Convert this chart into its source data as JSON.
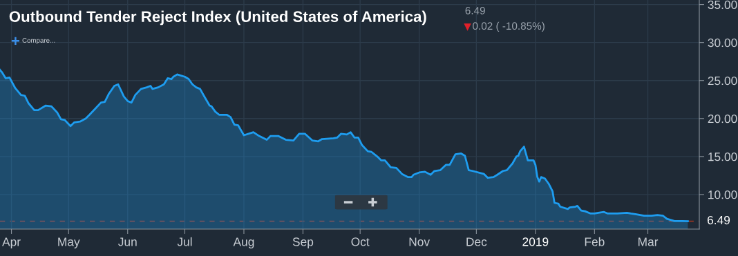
{
  "chart_data": {
    "type": "area",
    "title": "Outbound Tender Reject Index (United States of America)",
    "annotations": [
      "6.49",
      "0.02 ( -10.85%)",
      "Compare..."
    ],
    "x": [
      "2018-03-26",
      "2018-03-27",
      "2018-03-29",
      "2018-03-31",
      "2018-04-03",
      "2018-04-06",
      "2018-04-08",
      "2018-04-10",
      "2018-04-13",
      "2018-04-15",
      "2018-04-19",
      "2018-04-22",
      "2018-04-25",
      "2018-04-27",
      "2018-04-29",
      "2018-05-02",
      "2018-05-04",
      "2018-05-07",
      "2018-05-10",
      "2018-05-12",
      "2018-05-15",
      "2018-05-18",
      "2018-05-20",
      "2018-05-22",
      "2018-05-25",
      "2018-05-27",
      "2018-05-30",
      "2018-06-01",
      "2018-06-03",
      "2018-06-05",
      "2018-06-08",
      "2018-06-11",
      "2018-06-13",
      "2018-06-14",
      "2018-06-17",
      "2018-06-20",
      "2018-06-22",
      "2018-06-24",
      "2018-06-25",
      "2018-06-27",
      "2018-07-01",
      "2018-07-03",
      "2018-07-05",
      "2018-07-07",
      "2018-07-09",
      "2018-07-11",
      "2018-07-14",
      "2018-07-15",
      "2018-07-17",
      "2018-07-19",
      "2018-07-23",
      "2018-07-25",
      "2018-07-27",
      "2018-07-29",
      "2018-08-01",
      "2018-08-06",
      "2018-08-09",
      "2018-08-13",
      "2018-08-15",
      "2018-08-19",
      "2018-08-23",
      "2018-08-27",
      "2018-08-30",
      "2018-09-02",
      "2018-09-06",
      "2018-09-09",
      "2018-09-11",
      "2018-09-17",
      "2018-09-19",
      "2018-09-21",
      "2018-09-24",
      "2018-09-26",
      "2018-09-28",
      "2018-09-30",
      "2018-10-02",
      "2018-10-05",
      "2018-10-07",
      "2018-10-10",
      "2018-10-12",
      "2018-10-14",
      "2018-10-17",
      "2018-10-20",
      "2018-10-23",
      "2018-10-26",
      "2018-10-28",
      "2018-10-29",
      "2018-11-01",
      "2018-11-04",
      "2018-11-07",
      "2018-11-09",
      "2018-11-12",
      "2018-11-15",
      "2018-11-17",
      "2018-11-20",
      "2018-11-23",
      "2018-11-25",
      "2018-11-27",
      "2018-11-29",
      "2018-12-05",
      "2018-12-07",
      "2018-12-10",
      "2018-12-12",
      "2018-12-15",
      "2018-12-17",
      "2018-12-20",
      "2018-12-22",
      "2018-12-23",
      "2018-12-24",
      "2018-12-26",
      "2018-12-28",
      "2018-12-31",
      "2019-01-01",
      "2019-01-02",
      "2019-01-03",
      "2019-01-04",
      "2019-01-06",
      "2019-01-08",
      "2019-01-10",
      "2019-01-11",
      "2019-01-13",
      "2019-01-14",
      "2019-01-18",
      "2019-01-19",
      "2019-01-22",
      "2019-01-23",
      "2019-01-25",
      "2019-01-27",
      "2019-01-30",
      "2019-02-01",
      "2019-02-03",
      "2019-02-06",
      "2019-02-08",
      "2019-02-13",
      "2019-02-18",
      "2019-02-20",
      "2019-02-23",
      "2019-02-27",
      "2019-03-03",
      "2019-03-06",
      "2019-03-09",
      "2019-03-11",
      "2019-03-15",
      "2019-03-17",
      "2019-03-19",
      "2019-03-22"
    ],
    "series": [
      {
        "color": "#1e9df0",
        "values": [
          26.4,
          26.1,
          25.3,
          25.4,
          24.0,
          23.1,
          23.0,
          22.0,
          21.1,
          21.1,
          21.7,
          21.6,
          20.8,
          19.9,
          19.8,
          19.0,
          19.5,
          19.6,
          20.0,
          20.5,
          21.3,
          22.1,
          22.2,
          23.2,
          24.3,
          24.5,
          22.9,
          22.3,
          22.1,
          23.1,
          23.9,
          24.1,
          24.3,
          23.9,
          24.1,
          24.5,
          25.3,
          25.2,
          25.5,
          25.8,
          25.5,
          25.2,
          24.5,
          24.1,
          23.9,
          23.0,
          21.7,
          21.6,
          20.9,
          20.5,
          20.5,
          20.2,
          19.2,
          19.1,
          17.8,
          18.2,
          17.7,
          17.2,
          17.7,
          17.7,
          17.2,
          17.1,
          18.0,
          18.0,
          17.1,
          17.0,
          17.3,
          17.4,
          17.5,
          18.0,
          17.9,
          18.2,
          17.5,
          17.5,
          16.5,
          15.7,
          15.6,
          15.0,
          14.5,
          14.5,
          13.6,
          13.5,
          12.7,
          12.3,
          12.3,
          12.6,
          12.9,
          13.0,
          12.6,
          13.1,
          13.2,
          13.9,
          13.9,
          15.3,
          15.4,
          15.1,
          13.2,
          13.1,
          12.7,
          12.2,
          12.3,
          12.6,
          13.1,
          13.2,
          14.1,
          15.0,
          15.1,
          15.7,
          16.3,
          14.5,
          14.5,
          13.9,
          12.3,
          11.7,
          12.3,
          12.1,
          11.4,
          10.4,
          8.9,
          8.8,
          8.4,
          8.1,
          8.3,
          8.4,
          8.5,
          7.9,
          7.8,
          7.5,
          7.5,
          7.6,
          7.7,
          7.5,
          7.5,
          7.6,
          7.5,
          7.4,
          7.2,
          7.2,
          7.3,
          7.2,
          6.8,
          6.5,
          6.5,
          6.5,
          6.49
        ]
      }
    ],
    "xlim": [
      "2018-03-26",
      "2019-03-28"
    ],
    "xticks": [
      {
        "value": "2018-04-01",
        "label": "Apr"
      },
      {
        "value": "2018-05-01",
        "label": "May"
      },
      {
        "value": "2018-06-01",
        "label": "Jun"
      },
      {
        "value": "2018-07-01",
        "label": "Jul"
      },
      {
        "value": "2018-08-01",
        "label": "Aug"
      },
      {
        "value": "2018-09-01",
        "label": "Sep"
      },
      {
        "value": "2018-10-01",
        "label": "Oct"
      },
      {
        "value": "2018-11-01",
        "label": "Nov"
      },
      {
        "value": "2018-12-01",
        "label": "Dec"
      },
      {
        "value": "2019-01-01",
        "label": "2019"
      },
      {
        "value": "2019-02-01",
        "label": "Feb"
      },
      {
        "value": "2019-03-01",
        "label": "Mar"
      }
    ],
    "ylim": [
      5.45,
      35.6
    ],
    "yticks": [
      {
        "value": 10,
        "label": "10.00"
      },
      {
        "value": 15,
        "label": "15.00"
      },
      {
        "value": 20,
        "label": "20.00"
      },
      {
        "value": 25,
        "label": "25.00"
      },
      {
        "value": 30,
        "label": "30.00"
      },
      {
        "value": 35,
        "label": "35.00"
      }
    ],
    "ref_lines": [
      {
        "axis": "y",
        "value": 6.49,
        "label": "6.49",
        "color": "#b5381c",
        "line_style": "dashed"
      }
    ],
    "grid": true
  }
}
